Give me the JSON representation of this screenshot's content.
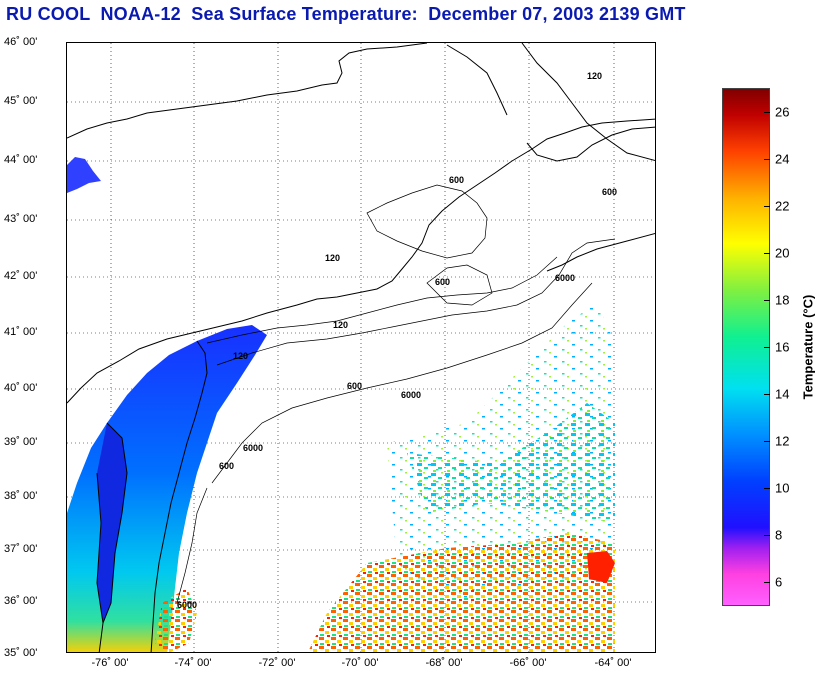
{
  "title": "RU COOL  NOAA-12  Sea Surface Temperature:  December 07, 2003 2139 GMT",
  "lat_labels": [
    "46˚ 00'",
    "45˚ 00'",
    "44˚ 00'",
    "43˚ 00'",
    "42˚ 00'",
    "41˚ 00'",
    "40˚ 00'",
    "39˚ 00'",
    "38˚ 00'",
    "37˚ 00'",
    "36˚ 00'",
    "35˚ 00'"
  ],
  "lon_labels": [
    "-76˚ 00'",
    "-74˚ 00'",
    "-72˚ 00'",
    "-70˚ 00'",
    "-68˚ 00'",
    "-66˚ 00'",
    "-64˚ 00'"
  ],
  "bathymetry_labels": [
    "120",
    "600",
    "6000"
  ],
  "colorbar": {
    "title": "Temperature (°C)",
    "ticks": [
      "26",
      "24",
      "22",
      "20",
      "18",
      "16",
      "14",
      "12",
      "10",
      "8",
      "6"
    ],
    "min": 5,
    "max": 27
  },
  "colors": {
    "title": "#0a1ab0",
    "land_line": "#000000",
    "grid": "#000000"
  }
}
